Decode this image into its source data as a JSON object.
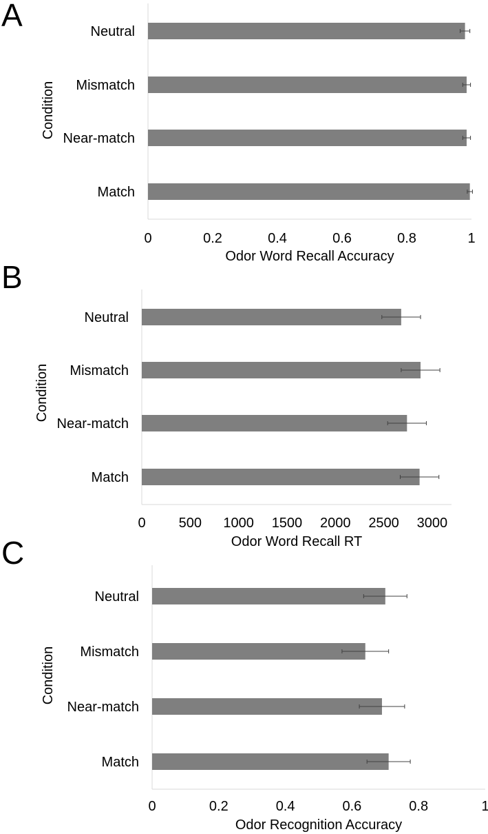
{
  "chart_data": [
    {
      "type": "bar",
      "orientation": "horizontal",
      "panel": "A",
      "title": "",
      "xlabel": "Odor Word Recall Accuracy",
      "ylabel": "Condition",
      "categories": [
        "Neutral",
        "Mismatch",
        "Near-match",
        "Match"
      ],
      "values": [
        0.98,
        0.985,
        0.985,
        0.995
      ],
      "errors": [
        0.015,
        0.012,
        0.012,
        0.008
      ],
      "xlim": [
        0,
        1
      ],
      "xticks": [
        "0",
        "0.2",
        "0.4",
        "0.6",
        "0.8",
        "1"
      ],
      "grid": false,
      "bar_color": "#7f7f7f"
    },
    {
      "type": "bar",
      "orientation": "horizontal",
      "panel": "B",
      "title": "",
      "xlabel": "Odor Word Recall RT",
      "ylabel": "Condition",
      "categories": [
        "Neutral",
        "Mismatch",
        "Near-match",
        "Match"
      ],
      "values": [
        2680,
        2880,
        2740,
        2870
      ],
      "errors": [
        200,
        200,
        200,
        200
      ],
      "xlim": [
        0,
        3200
      ],
      "xticks": [
        "0",
        "500",
        "1000",
        "1500",
        "2000",
        "2500",
        "3000"
      ],
      "grid": false,
      "bar_color": "#7f7f7f"
    },
    {
      "type": "bar",
      "orientation": "horizontal",
      "panel": "C",
      "title": "",
      "xlabel": "Odor Recognition Accuracy",
      "ylabel": "Condition",
      "categories": [
        "Neutral",
        "Mismatch",
        "Near-match",
        "Match"
      ],
      "values": [
        0.7,
        0.64,
        0.69,
        0.71
      ],
      "errors": [
        0.065,
        0.07,
        0.068,
        0.065
      ],
      "xlim": [
        0,
        1
      ],
      "xticks": [
        "0",
        "0.2",
        "0.4",
        "0.6",
        "0.8",
        "1"
      ],
      "grid": false,
      "bar_color": "#7f7f7f"
    }
  ]
}
